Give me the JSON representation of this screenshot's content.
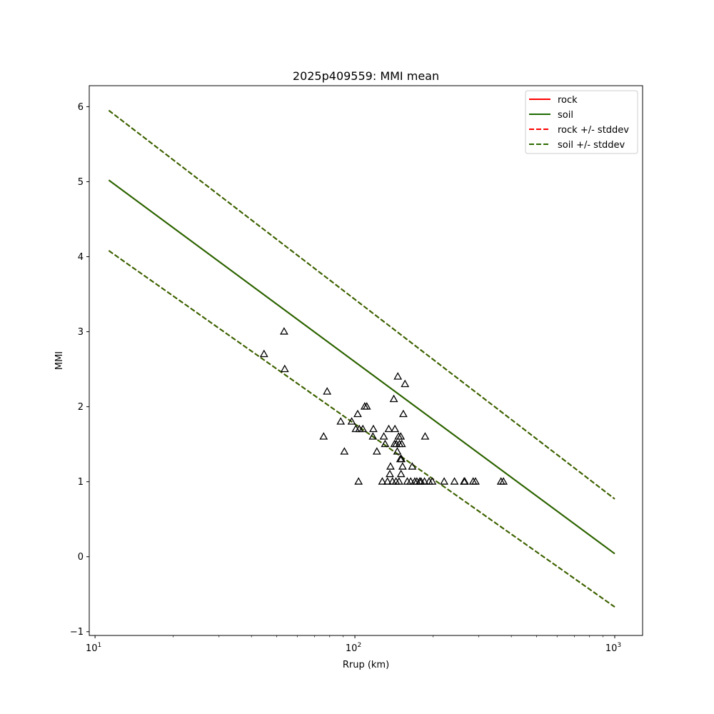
{
  "chart_data": {
    "type": "scatter",
    "title": "2025p409559: MMI mean",
    "xlabel": "Rrup (km)",
    "ylabel": "MMI",
    "xscale": "log",
    "xlim": [
      9.5,
      1280
    ],
    "ylim": [
      -1.05,
      6.28
    ],
    "x_ticks": [
      {
        "value": 10,
        "base": "10",
        "exp": "1"
      },
      {
        "value": 100,
        "base": "10",
        "exp": "2"
      },
      {
        "value": 1000,
        "base": "10",
        "exp": "3"
      }
    ],
    "y_ticks": [
      {
        "value": -1,
        "label": "−1"
      },
      {
        "value": 0,
        "label": "0"
      },
      {
        "value": 1,
        "label": "1"
      },
      {
        "value": 2,
        "label": "2"
      },
      {
        "value": 3,
        "label": "3"
      },
      {
        "value": 4,
        "label": "4"
      },
      {
        "value": 5,
        "label": "5"
      },
      {
        "value": 6,
        "label": "6"
      }
    ],
    "grid": false,
    "legend_position": "top-right",
    "colors": {
      "rock": "#ff0000",
      "soil": "#008000",
      "soil_dashed": "#2d6a00",
      "marker": "#000000"
    },
    "series": [
      {
        "name": "rock",
        "style": "solid",
        "color": "#ff0000",
        "x": [
          11.3,
          1000
        ],
        "y": [
          5.02,
          0.04
        ]
      },
      {
        "name": "soil",
        "style": "solid",
        "color": "#1e6b00",
        "x": [
          11.3,
          1000
        ],
        "y": [
          5.02,
          0.04
        ]
      },
      {
        "name": "rock +/- stddev",
        "style": "dashed",
        "color": "#ff0000",
        "x": [
          11.3,
          1000
        ],
        "y": [
          5.95,
          0.77
        ],
        "y_lower": [
          4.08,
          -0.67
        ]
      },
      {
        "name": "soil +/- stddev",
        "style": "dashed",
        "color": "#2d6a00",
        "x": [
          11.3,
          1000
        ],
        "y": [
          5.95,
          0.77
        ],
        "y_lower": [
          4.08,
          -0.67
        ]
      }
    ],
    "observations": {
      "marker": "triangle",
      "x": [
        44.7,
        53.4,
        53.7,
        75.8,
        78.2,
        88.2,
        91.1,
        97.2,
        100.8,
        102.5,
        103.3,
        104.0,
        107.3,
        109.1,
        111.1,
        117.3,
        117.8,
        121.5,
        127.5,
        129.2,
        130.7,
        133.5,
        135.0,
        136.3,
        137.1,
        139.5,
        141.2,
        142.1,
        142.6,
        143.9,
        144.4,
        145.6,
        146.3,
        147.3,
        147.9,
        148.4,
        149.6,
        150.1,
        150.5,
        151.0,
        151.5,
        152.6,
        153.6,
        155.9,
        159.1,
        164.0,
        166.2,
        170.0,
        173.2,
        177.6,
        179.7,
        185.3,
        186.3,
        193.0,
        198.5,
        220.6,
        241.7,
        263.2,
        264.8,
        285.2,
        291.2,
        365.0,
        373.0
      ],
      "y": [
        2.7,
        3.0,
        2.5,
        1.6,
        2.2,
        1.8,
        1.4,
        1.8,
        1.7,
        1.9,
        1.0,
        1.7,
        1.7,
        2.0,
        2.0,
        1.6,
        1.7,
        1.4,
        1.0,
        1.6,
        1.5,
        1.0,
        1.7,
        1.1,
        1.2,
        1.0,
        2.1,
        1.5,
        1.7,
        1.0,
        1.5,
        1.4,
        2.4,
        1.6,
        1.0,
        1.5,
        1.3,
        1.6,
        1.1,
        1.3,
        1.5,
        1.2,
        1.9,
        2.3,
        1.0,
        1.0,
        1.2,
        1.0,
        1.0,
        1.0,
        1.0,
        1.0,
        1.6,
        1.0,
        1.0,
        1.0,
        1.0,
        1.0,
        1.0,
        1.0,
        1.0,
        1.0,
        1.0
      ]
    }
  }
}
